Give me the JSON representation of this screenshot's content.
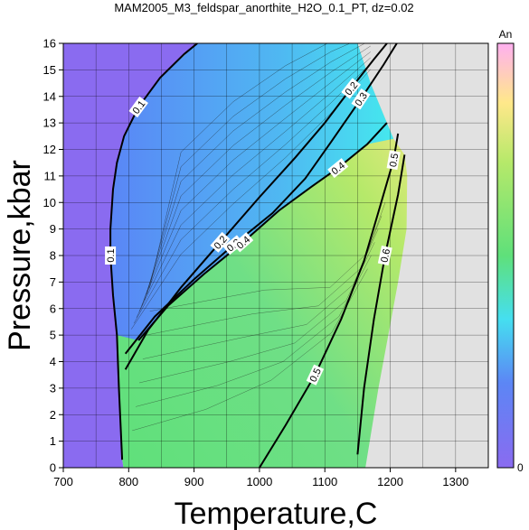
{
  "chart_data": {
    "type": "heatmap",
    "title": "MAM2005_M3_feldspar_anorthite_H2O_0.1_PT, dz=0.02",
    "xlabel": "Temperature,C",
    "ylabel": "Pressure,kbar",
    "xlim": [
      700,
      1350
    ],
    "ylim": [
      0,
      16
    ],
    "x_ticks": [
      "700",
      "800",
      "900",
      "1000",
      "1100",
      "1200",
      "1300"
    ],
    "y_ticks": [
      "0",
      "1",
      "2",
      "3",
      "4",
      "5",
      "6",
      "7",
      "8",
      "9",
      "10",
      "11",
      "12",
      "13",
      "14",
      "15",
      "16"
    ],
    "grid": true,
    "colorbar": {
      "label": "An",
      "min_label": "0",
      "min": 0,
      "max": 1,
      "colors": [
        "#8a6bf0",
        "#5c86f5",
        "#45dff0",
        "#5fe07a",
        "#b6e96a",
        "#ffe88a",
        "#ffb0f0"
      ]
    },
    "contour_labels": [
      "0.1",
      "0.2",
      "0.3",
      "0.4",
      "0.5",
      "0.6"
    ],
    "contours": [
      {
        "level": "0.1",
        "points": [
          [
            790,
            0.3
          ],
          [
            785,
            3
          ],
          [
            782,
            5
          ],
          [
            776,
            6.5
          ],
          [
            772,
            8
          ],
          [
            772,
            9
          ],
          [
            776,
            10.5
          ],
          [
            782,
            11.5
          ],
          [
            793,
            12.5
          ],
          [
            815,
            13.6
          ],
          [
            848,
            14.7
          ],
          [
            885,
            15.6
          ],
          [
            905,
            16
          ]
        ]
      },
      {
        "level": "0.2",
        "points": [
          [
            795,
            3.7
          ],
          [
            830,
            5.2
          ],
          [
            880,
            6.8
          ],
          [
            940,
            8.5
          ],
          [
            1000,
            10.2
          ],
          [
            1055,
            11.7
          ],
          [
            1100,
            13
          ],
          [
            1140,
            14.3
          ],
          [
            1175,
            15.4
          ],
          [
            1195,
            16
          ]
        ]
      },
      {
        "level": "0.3",
        "points": [
          [
            795,
            4.3
          ],
          [
            840,
            5.7
          ],
          [
            900,
            7.1
          ],
          [
            960,
            8.4
          ],
          [
            1020,
            9.6
          ],
          [
            1070,
            10.9
          ],
          [
            1110,
            12.3
          ],
          [
            1155,
            13.9
          ],
          [
            1190,
            15.2
          ],
          [
            1210,
            16
          ]
        ]
      },
      {
        "level": "0.4",
        "points": [
          [
            815,
            4.8
          ],
          [
            860,
            6.1
          ],
          [
            915,
            7.3
          ],
          [
            975,
            8.5
          ],
          [
            1030,
            9.7
          ],
          [
            1080,
            10.6
          ],
          [
            1120,
            11.3
          ],
          [
            1165,
            12.2
          ],
          [
            1195,
            13
          ]
        ]
      },
      {
        "level": "0.5",
        "points": [
          [
            1000,
            0
          ],
          [
            1040,
            1.6
          ],
          [
            1085,
            3.5
          ],
          [
            1125,
            5.6
          ],
          [
            1160,
            7.8
          ],
          [
            1185,
            9.9
          ],
          [
            1205,
            11.6
          ],
          [
            1212,
            12.6
          ]
        ]
      },
      {
        "level": "0.6",
        "points": [
          [
            1150,
            0.5
          ],
          [
            1160,
            3
          ],
          [
            1175,
            5.6
          ],
          [
            1192,
            8
          ],
          [
            1212,
            10.3
          ],
          [
            1222,
            11.8
          ]
        ]
      }
    ]
  }
}
